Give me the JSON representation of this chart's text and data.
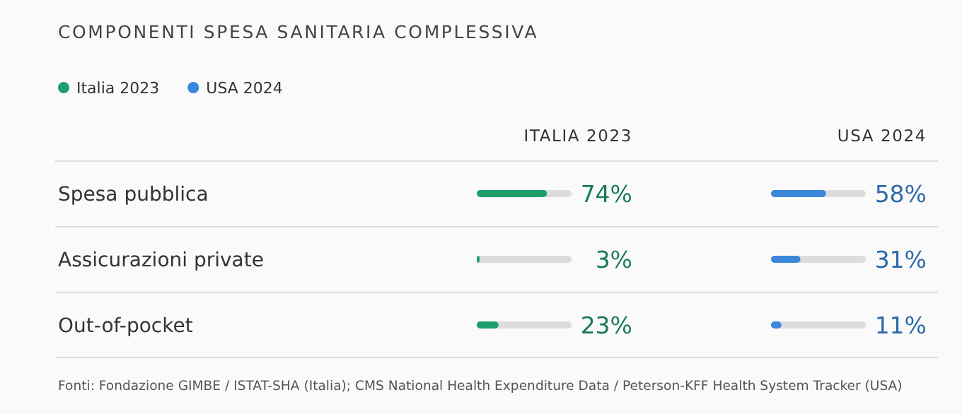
{
  "chart_data": [
    {
      "type": "bar",
      "orientation": "horizontal",
      "title": "COMPONENTI SPESA SANITARIA COMPLESSIVA",
      "subtitle": "ITALIA 2023",
      "categories": [
        "Spesa pubblica",
        "Assicurazioni private",
        "Out-of-pocket"
      ],
      "series": [
        {
          "name": "Italia 2023",
          "color": "#1f9e6c",
          "values": [
            74,
            3,
            23
          ],
          "value_labels": [
            "74%",
            "3%",
            "23%"
          ]
        }
      ],
      "xlim": [
        0,
        100
      ],
      "legend": "top left",
      "grid": "y"
    },
    {
      "type": "bar",
      "orientation": "horizontal",
      "subtitle": "USA 2024",
      "categories": [
        "Spesa pubblica",
        "Assicurazioni private",
        "Out-of-pocket"
      ],
      "series": [
        {
          "name": "USA 2024",
          "color": "#3b87d9",
          "values": [
            58,
            31,
            11
          ],
          "value_labels": [
            "58%",
            "31%",
            "11%"
          ]
        }
      ],
      "xlim": [
        0,
        100
      ],
      "legend": "top left",
      "tick_labels": false,
      "annotations": [
        "Fonti: Fondazione GIMBE / ISTAT-SHA (Italia); CMS National Health Expenditure Data / Peterson-KFF Health System Tracker (USA)"
      ]
    }
  ]
}
